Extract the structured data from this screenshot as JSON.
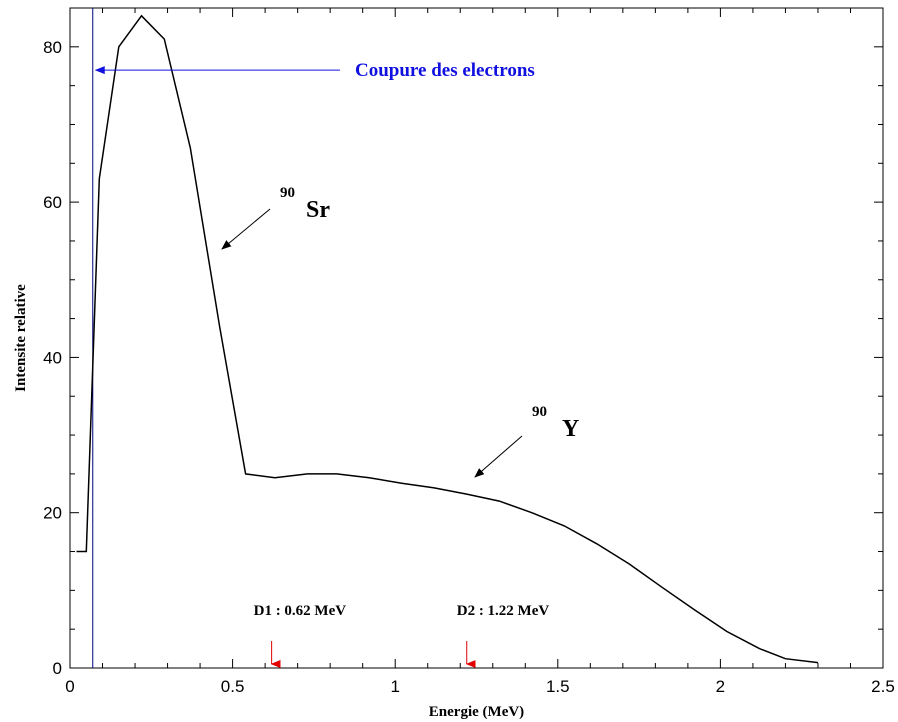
{
  "chart_data": {
    "type": "line",
    "title": "",
    "xlabel": "Energie (MeV)",
    "ylabel": "Intensite relative",
    "xlim": [
      0,
      2.5
    ],
    "ylim": [
      0,
      85
    ],
    "xticks": [
      0,
      0.5,
      1,
      1.5,
      2,
      2.5
    ],
    "xtick_labels": [
      "0",
      "0.5",
      "1",
      "1.5",
      "2",
      "2.5"
    ],
    "yticks": [
      0,
      20,
      40,
      60,
      80
    ],
    "ytick_labels": [
      "0",
      "20",
      "40",
      "60",
      "80"
    ],
    "grid": false,
    "series": [
      {
        "color": "#000000",
        "x": [
          0.02,
          0.05,
          0.09,
          0.15,
          0.22,
          0.29,
          0.37,
          0.46,
          0.54,
          0.63,
          0.73,
          0.82,
          0.92,
          1.02,
          1.12,
          1.22,
          1.32,
          1.42,
          1.52,
          1.62,
          1.72,
          1.82,
          1.92,
          2.02,
          2.12,
          2.2,
          2.3
        ],
        "y": [
          15,
          15,
          63,
          80,
          84,
          81,
          67,
          44,
          25,
          24.5,
          25,
          25,
          24.5,
          23.8,
          23.2,
          22.4,
          21.5,
          20,
          18.3,
          16,
          13.4,
          10.4,
          7.5,
          4.7,
          2.5,
          1.2,
          0.7
        ]
      }
    ],
    "cutoff_line": {
      "x": 0.07,
      "color": "#000080"
    },
    "annotations": {
      "cutoff": {
        "text": "Coupure des electrons",
        "color": "#1010e0"
      },
      "sr": {
        "superscript": "90",
        "text": "Sr"
      },
      "y": {
        "superscript": "90",
        "text": "Y"
      },
      "d1": {
        "text": "D1 : 0.62 MeV",
        "x": 0.62,
        "arrow_color": "#e00000"
      },
      "d2": {
        "text": "D2 : 1.22 MeV",
        "x": 1.22,
        "arrow_color": "#e00000"
      }
    }
  }
}
